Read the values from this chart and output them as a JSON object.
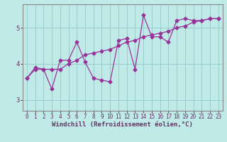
{
  "title": "",
  "xlabel": "Windchill (Refroidissement éolien,°C)",
  "ylabel": "",
  "background_color": "#c0eae8",
  "line_color": "#993399",
  "grid_color": "#99cccc",
  "axis_color": "#663366",
  "spine_color": "#888888",
  "xlim": [
    -0.5,
    23.5
  ],
  "ylim": [
    2.7,
    5.65
  ],
  "yticks": [
    3,
    4,
    5
  ],
  "xticks": [
    0,
    1,
    2,
    3,
    4,
    5,
    6,
    7,
    8,
    9,
    10,
    11,
    12,
    13,
    14,
    15,
    16,
    17,
    18,
    19,
    20,
    21,
    22,
    23
  ],
  "line1_x": [
    0,
    1,
    2,
    3,
    4,
    5,
    6,
    7,
    8,
    9,
    10,
    11,
    12,
    13,
    14,
    15,
    16,
    17,
    18,
    19,
    20,
    21,
    22,
    23
  ],
  "line1_y": [
    3.6,
    3.9,
    3.85,
    3.3,
    4.1,
    4.1,
    4.6,
    4.05,
    3.6,
    3.55,
    3.5,
    4.65,
    4.7,
    3.85,
    5.35,
    4.75,
    4.75,
    4.6,
    5.2,
    5.25,
    5.2,
    5.2,
    5.25,
    5.25
  ],
  "line2_x": [
    0,
    1,
    2,
    3,
    4,
    5,
    6,
    7,
    8,
    9,
    10,
    11,
    12,
    13,
    14,
    15,
    16,
    17,
    18,
    19,
    20,
    21,
    22,
    23
  ],
  "line2_y": [
    3.6,
    3.85,
    3.85,
    3.85,
    3.85,
    4.0,
    4.1,
    4.25,
    4.3,
    4.35,
    4.4,
    4.5,
    4.6,
    4.65,
    4.75,
    4.8,
    4.85,
    4.9,
    5.0,
    5.05,
    5.15,
    5.2,
    5.25,
    5.25
  ],
  "tick_fontsize": 5.5,
  "label_fontsize": 6.5
}
